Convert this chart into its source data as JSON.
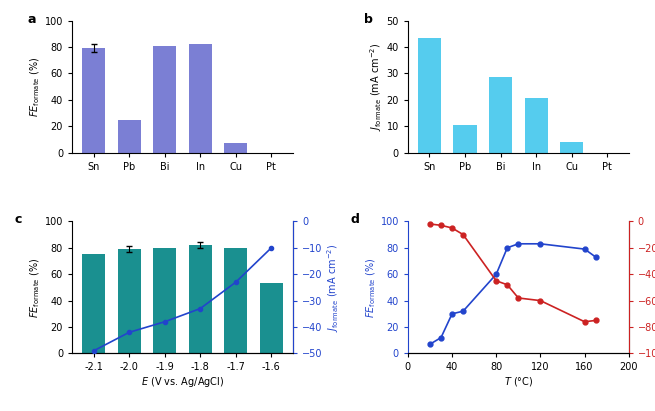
{
  "panel_a": {
    "categories": [
      "Sn",
      "Pb",
      "Bi",
      "In",
      "Cu",
      "Pt"
    ],
    "values": [
      79,
      25,
      81,
      82,
      7,
      0
    ],
    "error": [
      3,
      0,
      0,
      0,
      0,
      0
    ],
    "bar_color": "#7B7FD4",
    "ylabel_main": "FE",
    "ylabel_sub": "formate",
    "ylabel_unit": "(%)",
    "ylim": [
      0,
      100
    ],
    "yticks": [
      0,
      20,
      40,
      60,
      80,
      100
    ],
    "label": "a"
  },
  "panel_b": {
    "categories": [
      "Sn",
      "Pb",
      "Bi",
      "In",
      "Cu",
      "Pt"
    ],
    "values": [
      43.5,
      10.5,
      28.5,
      20.5,
      4,
      0
    ],
    "bar_color": "#55CCEE",
    "ylim": [
      0,
      50
    ],
    "yticks": [
      0,
      10,
      20,
      30,
      40,
      50
    ],
    "label": "b"
  },
  "panel_c": {
    "x": [
      -2.1,
      -2.0,
      -1.9,
      -1.8,
      -1.7,
      -1.6
    ],
    "fe_values": [
      75,
      79,
      80,
      82,
      80,
      53
    ],
    "fe_errors": [
      0,
      2,
      0,
      2,
      0,
      0
    ],
    "j_values": [
      -49,
      -42,
      -38,
      -33,
      -23,
      -10
    ],
    "bar_color": "#1A9090",
    "line_color": "#2244CC",
    "fe_ylim": [
      0,
      100
    ],
    "fe_yticks": [
      0,
      20,
      40,
      60,
      80,
      100
    ],
    "j_ylim": [
      -50,
      0
    ],
    "j_yticks": [
      -50,
      -40,
      -30,
      -20,
      -10,
      0
    ],
    "label": "c"
  },
  "panel_d": {
    "x": [
      20,
      30,
      40,
      50,
      80,
      90,
      100,
      120,
      160,
      170
    ],
    "fe_values": [
      7,
      12,
      30,
      32,
      60,
      80,
      83,
      83,
      79,
      73
    ],
    "j_values": [
      -2,
      -3,
      -5,
      -10,
      -45,
      -48,
      -58,
      -60,
      -76,
      -75
    ],
    "fe_color": "#2244CC",
    "j_color": "#CC2222",
    "fe_ylim": [
      0,
      100
    ],
    "fe_yticks": [
      0,
      20,
      40,
      60,
      80,
      100
    ],
    "j_ylim": [
      -100,
      0
    ],
    "j_yticks": [
      -100,
      -80,
      -60,
      -40,
      -20,
      0
    ],
    "label": "d"
  }
}
